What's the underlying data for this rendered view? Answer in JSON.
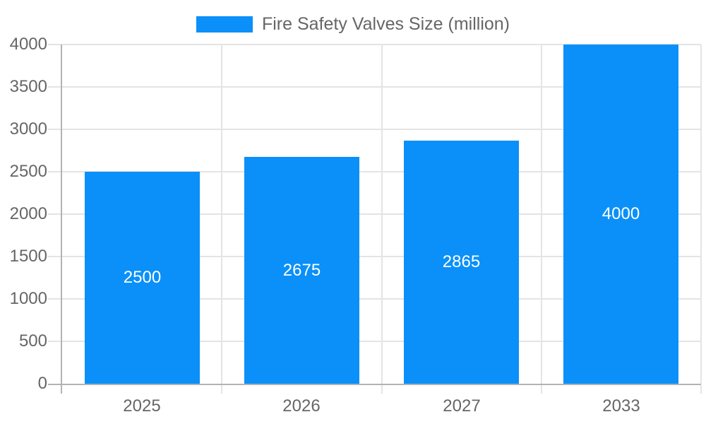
{
  "chart_data": {
    "type": "bar",
    "title": "",
    "legend_label": "Fire Safety Valves Size (million)",
    "legend_position": "top",
    "categories": [
      "2025",
      "2026",
      "2027",
      "2033"
    ],
    "values": [
      2500,
      2675,
      2865,
      4000
    ],
    "bar_labels": [
      "2500",
      "2675",
      "2865",
      "4000"
    ],
    "xlabel": "",
    "ylabel": "",
    "ylim": [
      0,
      4000
    ],
    "yticks": [
      0,
      500,
      1000,
      1500,
      2000,
      2500,
      3000,
      3500,
      4000
    ],
    "ytick_labels": [
      "0",
      "500",
      "1000",
      "1500",
      "2000",
      "2500",
      "3000",
      "3500",
      "4000"
    ],
    "grid": true,
    "vertical_category_gridlines": true,
    "colors": {
      "bar": "#0a90f8",
      "grid": "#e4e4e4",
      "axis": "#b3b3b3",
      "text": "#666666",
      "bar_label_text": "#ffffff",
      "background": "#ffffff"
    }
  }
}
